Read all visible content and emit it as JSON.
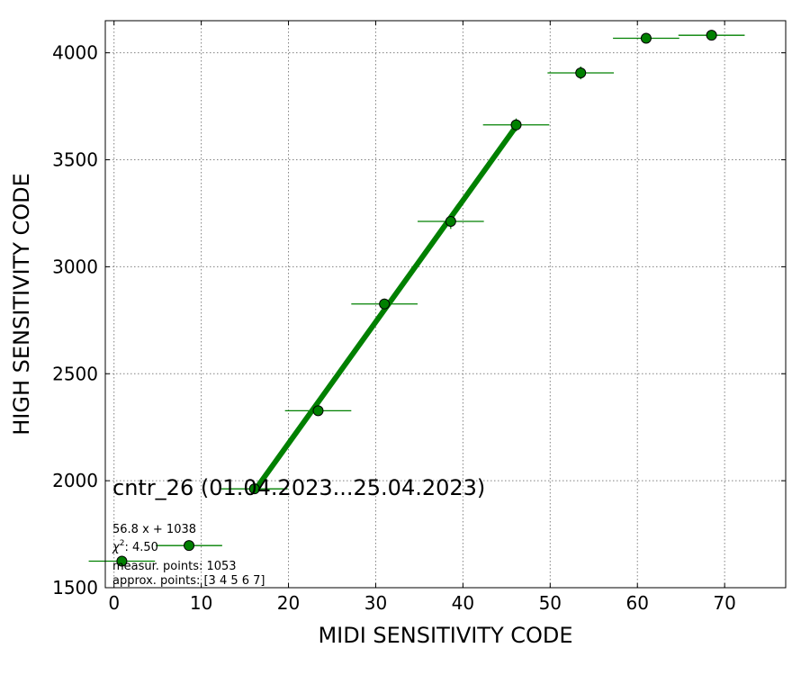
{
  "chart_data": {
    "type": "scatter",
    "title": "",
    "xlabel": "MIDI SENSITIVITY CODE",
    "ylabel": "HIGH SENSITIVITY CODE",
    "xlim": [
      -1,
      77
    ],
    "ylim": [
      1500,
      4150
    ],
    "xticks": [
      0,
      10,
      20,
      30,
      40,
      50,
      60,
      70
    ],
    "yticks": [
      1500,
      2000,
      2500,
      3000,
      3500,
      4000
    ],
    "grid": true,
    "series": [
      {
        "color": "#008000",
        "points": [
          {
            "x": 0.9,
            "y": 1624,
            "xerr": 3.8,
            "yerr": 12
          },
          {
            "x": 8.6,
            "y": 1697,
            "xerr": 3.8,
            "yerr": 12
          },
          {
            "x": 16.1,
            "y": 1962,
            "xerr": 3.8,
            "yerr": 15
          },
          {
            "x": 23.4,
            "y": 2327,
            "xerr": 3.8,
            "yerr": 18
          },
          {
            "x": 31.0,
            "y": 2826,
            "xerr": 3.8,
            "yerr": 25
          },
          {
            "x": 38.6,
            "y": 3212,
            "xerr": 3.8,
            "yerr": 35
          },
          {
            "x": 46.1,
            "y": 3663,
            "xerr": 3.8,
            "yerr": 30
          },
          {
            "x": 53.5,
            "y": 3906,
            "xerr": 3.8,
            "yerr": 30
          },
          {
            "x": 61.0,
            "y": 4068,
            "xerr": 3.8,
            "yerr": 12
          },
          {
            "x": 68.5,
            "y": 4082,
            "xerr": 3.8,
            "yerr": 10
          }
        ]
      }
    ],
    "fit": {
      "slope": 56.8,
      "intercept": 1038,
      "x_range": [
        16.1,
        46.1
      ],
      "color": "#008000"
    }
  },
  "annotations": {
    "title": "cntr_26 (01.04.2023...25.04.2023)",
    "equation": "56.8 x + 1038",
    "chi2_symbol": "χ",
    "chi2_sup": "2",
    "chi2_value": ": 4.50",
    "measur": "measur. points: 1053",
    "approx": "approx. points: [3 4 5 6 7]"
  }
}
